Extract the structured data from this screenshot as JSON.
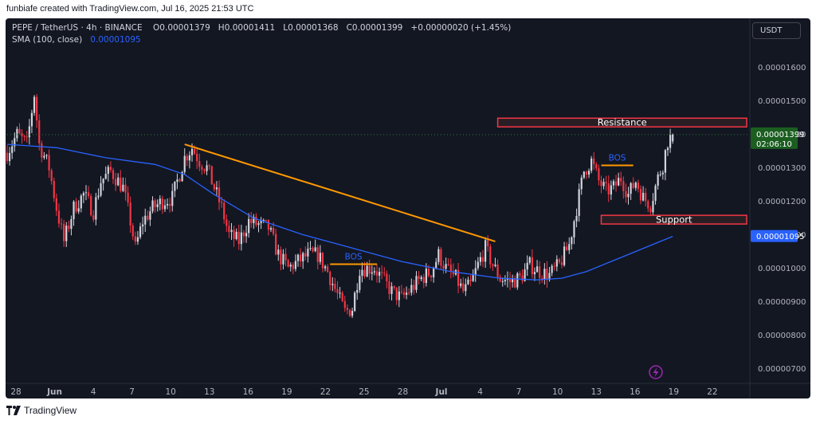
{
  "caption": "funbiafe created with TradingView.com, Jul 16, 2025 21:53 UTC",
  "footer_brand": "TradingView",
  "currency_button": "USDT",
  "legend": {
    "symbol": "PEPE / TetherUS · 4h · BINANCE",
    "o_label": "O",
    "o_value": "0.00001379",
    "h_label": "H",
    "h_value": "0.00001411",
    "l_label": "L",
    "l_value": "0.00001368",
    "c_label": "C",
    "c_value": "0.00001399",
    "change": "+0.00000020 (+1.45%)",
    "sma_label": "SMA (100, close)",
    "sma_value": "0.00001095"
  },
  "colors": {
    "background": "#131722",
    "up": "#d1d4dc",
    "down": "#f23645",
    "sma": "#2962ff",
    "trendline": "#ff9800",
    "zone_border": "#f23645",
    "zone_fill": "#2a1e25",
    "last_price_badge": "#1b5e20",
    "sma_badge": "#2962ff"
  },
  "chart_data": {
    "type": "candlestick",
    "y_ticks": [
      "0.00001600",
      "0.00001500",
      "0.00001400",
      "0.00001300",
      "0.00001200",
      "0.00001100",
      "0.00001000",
      "0.00000900",
      "0.00000800",
      "0.00000700"
    ],
    "y_range": [
      6.8e-06,
      1.67e-05
    ],
    "x_ticks": [
      "28",
      "Jun",
      "4",
      "7",
      "10",
      "13",
      "16",
      "19",
      "22",
      "25",
      "28",
      "Jul",
      "4",
      "7",
      "10",
      "13",
      "16",
      "19",
      "22"
    ],
    "last_price_label": "0.00001399",
    "countdown": "02:06:10",
    "sma_price_label": "0.00001095",
    "close_path": [
      [
        0,
        1.345e-05
      ],
      [
        4,
        1.4e-05
      ],
      [
        8,
        1.37e-05
      ],
      [
        11,
        1.52e-05
      ],
      [
        13,
        1.37e-05
      ],
      [
        17,
        1.3e-05
      ],
      [
        20,
        1.18e-05
      ],
      [
        23,
        1.08e-05
      ],
      [
        27,
        1.18e-05
      ],
      [
        31,
        1.22e-05
      ],
      [
        35,
        1.17e-05
      ],
      [
        38,
        1.26e-05
      ],
      [
        42,
        1.29e-05
      ],
      [
        47,
        1.24e-05
      ],
      [
        50,
        1.14e-05
      ],
      [
        52,
        1.06e-05
      ],
      [
        55,
        1.14e-05
      ],
      [
        59,
        1.18e-05
      ],
      [
        63,
        1.2e-05
      ],
      [
        67,
        1.21e-05
      ],
      [
        69,
        1.26e-05
      ],
      [
        72,
        1.33e-05
      ],
      [
        75,
        1.36e-05
      ],
      [
        78,
        1.32e-05
      ],
      [
        81,
        1.3e-05
      ],
      [
        84,
        1.24e-05
      ],
      [
        87,
        1.18e-05
      ],
      [
        90,
        1.1e-05
      ],
      [
        94,
        1.08e-05
      ],
      [
        98,
        1.14e-05
      ],
      [
        102,
        1.13e-05
      ],
      [
        106,
        1.12e-05
      ],
      [
        110,
        1.04e-05
      ],
      [
        114,
        1e-05
      ],
      [
        118,
        1.02e-05
      ],
      [
        122,
        1.04e-05
      ],
      [
        126,
        1.04e-05
      ],
      [
        130,
        9.9e-06
      ],
      [
        134,
        9.2e-06
      ],
      [
        137,
        8.7e-06
      ],
      [
        140,
        8.8e-06
      ],
      [
        143,
        1e-05
      ],
      [
        146,
        1e-05
      ],
      [
        149,
        1e-05
      ],
      [
        152,
        9.7e-06
      ],
      [
        156,
        9.3e-06
      ],
      [
        160,
        9.1e-06
      ],
      [
        164,
        9.4e-06
      ],
      [
        168,
        9.7e-06
      ],
      [
        172,
        9.9e-06
      ],
      [
        175,
        1.04e-05
      ],
      [
        178,
        1e-05
      ],
      [
        182,
        9.7e-06
      ],
      [
        185,
        9.3e-06
      ],
      [
        188,
        9.5e-06
      ],
      [
        191,
        1.01e-05
      ],
      [
        194,
        1.06e-05
      ],
      [
        197,
        1.01e-05
      ],
      [
        200,
        9.7e-06
      ],
      [
        204,
        9.6e-06
      ],
      [
        208,
        9.7e-06
      ],
      [
        212,
        1.01e-05
      ],
      [
        216,
        9.9e-06
      ],
      [
        220,
        9.8e-06
      ],
      [
        224,
        1.01e-05
      ],
      [
        228,
        1.07e-05
      ],
      [
        231,
        1.18e-05
      ],
      [
        234,
        1.29e-05
      ],
      [
        237,
        1.32e-05
      ],
      [
        240,
        1.26e-05
      ],
      [
        243,
        1.23e-05
      ],
      [
        246,
        1.24e-05
      ],
      [
        249,
        1.27e-05
      ],
      [
        252,
        1.22e-05
      ],
      [
        255,
        1.26e-05
      ],
      [
        258,
        1.21e-05
      ],
      [
        261,
        1.19e-05
      ],
      [
        264,
        1.27e-05
      ],
      [
        266,
        1.31e-05
      ],
      [
        268,
        1.38e-05
      ],
      [
        270,
        1.4e-05
      ]
    ],
    "sma_path": [
      [
        0,
        1.37e-05
      ],
      [
        20,
        1.36e-05
      ],
      [
        40,
        1.33e-05
      ],
      [
        60,
        1.31e-05
      ],
      [
        72,
        1.28e-05
      ],
      [
        84,
        1.22e-05
      ],
      [
        100,
        1.15e-05
      ],
      [
        120,
        1.1e-05
      ],
      [
        140,
        1.06e-05
      ],
      [
        160,
        1.02e-05
      ],
      [
        180,
        9.9e-06
      ],
      [
        200,
        9.7e-06
      ],
      [
        215,
        9.65e-06
      ],
      [
        225,
        9.7e-06
      ],
      [
        235,
        9.9e-06
      ],
      [
        245,
        1.02e-05
      ],
      [
        255,
        1.05e-05
      ],
      [
        265,
        1.08e-05
      ],
      [
        270,
        1.095e-05
      ]
    ],
    "trendline": [
      [
        72,
        1.37e-05
      ],
      [
        198,
        1.08e-05
      ]
    ],
    "annotations": [
      {
        "type": "zone",
        "label": "Resistance",
        "x": [
          199,
          300
        ],
        "y": [
          1.422e-05,
          1.448e-05
        ]
      },
      {
        "type": "zone",
        "label": "Support",
        "x": [
          241,
          300
        ],
        "y": [
          1.132e-05,
          1.158e-05
        ]
      },
      {
        "type": "bos",
        "label": "BOS",
        "x": [
          131,
          150
        ],
        "y": 1.012e-05
      },
      {
        "type": "bos",
        "label": "BOS",
        "x": [
          241,
          254
        ],
        "y": 1.307e-05
      }
    ]
  }
}
